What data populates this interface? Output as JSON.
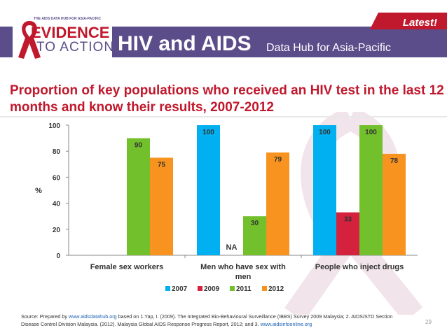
{
  "header": {
    "logo_small": "THE AIDS DATA HUB FOR ASIA-PACIFIC",
    "logo_line1": "EVIDENCE",
    "logo_line2": "TO ACTION",
    "hub_title": "HIV and AIDS",
    "hub_subtitle": "Data Hub for Asia-Pacific",
    "badge": "Latest!"
  },
  "colors": {
    "band": "#5b4d8a",
    "title_red": "#c0182c",
    "s2007": "#00b0f0",
    "s2009": "#d4213d",
    "s2011": "#72c02c",
    "s2012": "#f7931e"
  },
  "chart_data": {
    "type": "bar",
    "title": "Proportion of key populations who received an HIV test in the last 12 months and know their results, 2007-2012",
    "ylabel": "%",
    "xlabel": "",
    "ylim": [
      0,
      100
    ],
    "yticks": [
      "0",
      "20",
      "40",
      "60",
      "80",
      "100"
    ],
    "categories": [
      "Female sex workers",
      "Men who have sex with men",
      "People who inject drugs"
    ],
    "series": [
      {
        "name": "2007",
        "color": "#00b0f0",
        "values": [
          null,
          100,
          100
        ]
      },
      {
        "name": "2009",
        "color": "#d4213d",
        "values": [
          null,
          null,
          33
        ]
      },
      {
        "name": "2011",
        "color": "#72c02c",
        "values": [
          90,
          30,
          100
        ]
      },
      {
        "name": "2012",
        "color": "#f7931e",
        "values": [
          75,
          79,
          78
        ]
      }
    ],
    "annotations": [
      {
        "category": "Men who have sex with men",
        "text": "NA"
      }
    ],
    "legend_position": "bottom"
  },
  "footer": {
    "source_prefix": "Source: Prepared by ",
    "link1": "www.aidsdatahub.org",
    "source_middle": " based on 1.Yap, I. (2009). The Integrated Bio-Behavioural Surveillance (IBBS) Survey 2009 Malaysia; 2. AIDS/STD Section Disease Control Division Malaysia. (2012). Malaysia Global AIDS Response Progress Report, 2012; and 3. ",
    "link2": "www.aidsinfoonline.org",
    "page_number": "29"
  }
}
